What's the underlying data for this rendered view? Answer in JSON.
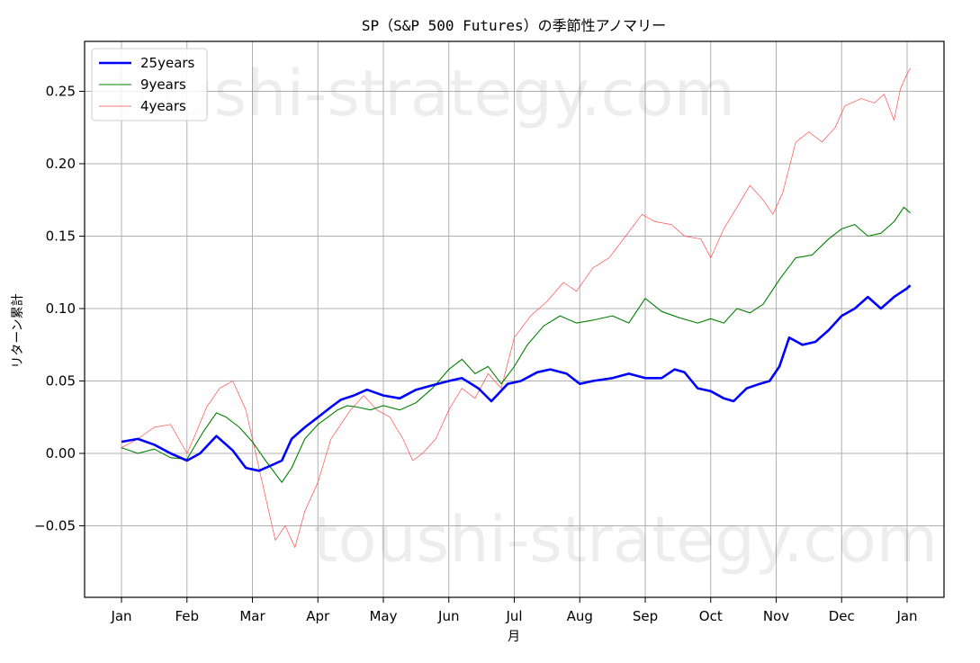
{
  "chart_data": {
    "type": "line",
    "title": "SP（S&P 500 Futures）の季節性アノマリー",
    "xlabel": "月",
    "ylabel": "リターン累計",
    "watermark": "toushi-strategy.com",
    "x_ticks": [
      "Jan",
      "Feb",
      "Mar",
      "Apr",
      "May",
      "Jun",
      "Jul",
      "Aug",
      "Sep",
      "Oct",
      "Nov",
      "Dec",
      "Jan"
    ],
    "y_ticks": [
      -0.05,
      0.0,
      0.05,
      0.1,
      0.15,
      0.2,
      0.25
    ],
    "y_tick_labels": [
      "−0.05",
      "0.00",
      "0.05",
      "0.10",
      "0.15",
      "0.20",
      "0.25"
    ],
    "xlim": [
      0,
      12.55
    ],
    "ylim": [
      -0.1,
      0.285
    ],
    "grid": true,
    "legend_position": "top-left",
    "x_unit": "month",
    "series": [
      {
        "name": "25years",
        "color": "#0000ff",
        "width": "thick",
        "points": [
          [
            0.0,
            0.008
          ],
          [
            0.25,
            0.01
          ],
          [
            0.5,
            0.006
          ],
          [
            0.75,
            0.0
          ],
          [
            1.0,
            -0.005
          ],
          [
            1.2,
            0.0
          ],
          [
            1.45,
            0.012
          ],
          [
            1.7,
            0.002
          ],
          [
            1.9,
            -0.01
          ],
          [
            2.1,
            -0.012
          ],
          [
            2.3,
            -0.008
          ],
          [
            2.45,
            -0.005
          ],
          [
            2.6,
            0.01
          ],
          [
            2.8,
            0.018
          ],
          [
            3.0,
            0.025
          ],
          [
            3.2,
            0.032
          ],
          [
            3.35,
            0.037
          ],
          [
            3.55,
            0.04
          ],
          [
            3.75,
            0.044
          ],
          [
            4.0,
            0.04
          ],
          [
            4.25,
            0.038
          ],
          [
            4.5,
            0.044
          ],
          [
            4.75,
            0.047
          ],
          [
            5.0,
            0.05
          ],
          [
            5.2,
            0.052
          ],
          [
            5.45,
            0.045
          ],
          [
            5.65,
            0.036
          ],
          [
            5.9,
            0.048
          ],
          [
            6.1,
            0.05
          ],
          [
            6.35,
            0.056
          ],
          [
            6.55,
            0.058
          ],
          [
            6.8,
            0.055
          ],
          [
            7.0,
            0.048
          ],
          [
            7.2,
            0.05
          ],
          [
            7.5,
            0.052
          ],
          [
            7.75,
            0.055
          ],
          [
            8.0,
            0.052
          ],
          [
            8.25,
            0.052
          ],
          [
            8.45,
            0.058
          ],
          [
            8.6,
            0.056
          ],
          [
            8.8,
            0.045
          ],
          [
            9.0,
            0.043
          ],
          [
            9.2,
            0.038
          ],
          [
            9.35,
            0.036
          ],
          [
            9.55,
            0.045
          ],
          [
            9.75,
            0.048
          ],
          [
            9.9,
            0.05
          ],
          [
            10.05,
            0.06
          ],
          [
            10.2,
            0.08
          ],
          [
            10.4,
            0.075
          ],
          [
            10.6,
            0.077
          ],
          [
            10.8,
            0.085
          ],
          [
            11.0,
            0.095
          ],
          [
            11.2,
            0.1
          ],
          [
            11.4,
            0.108
          ],
          [
            11.6,
            0.1
          ],
          [
            11.8,
            0.108
          ],
          [
            12.0,
            0.114
          ],
          [
            12.05,
            0.116
          ]
        ]
      },
      {
        "name": "9years",
        "color": "#008000",
        "width": "medium",
        "points": [
          [
            0.0,
            0.004
          ],
          [
            0.25,
            0.0
          ],
          [
            0.5,
            0.003
          ],
          [
            0.75,
            -0.003
          ],
          [
            1.0,
            -0.004
          ],
          [
            1.25,
            0.015
          ],
          [
            1.45,
            0.028
          ],
          [
            1.6,
            0.025
          ],
          [
            1.8,
            0.018
          ],
          [
            2.0,
            0.008
          ],
          [
            2.2,
            -0.005
          ],
          [
            2.45,
            -0.02
          ],
          [
            2.6,
            -0.01
          ],
          [
            2.8,
            0.01
          ],
          [
            3.0,
            0.02
          ],
          [
            3.15,
            0.025
          ],
          [
            3.3,
            0.03
          ],
          [
            3.45,
            0.033
          ],
          [
            3.6,
            0.032
          ],
          [
            3.8,
            0.03
          ],
          [
            4.0,
            0.033
          ],
          [
            4.25,
            0.03
          ],
          [
            4.5,
            0.035
          ],
          [
            4.75,
            0.045
          ],
          [
            5.0,
            0.058
          ],
          [
            5.2,
            0.065
          ],
          [
            5.4,
            0.055
          ],
          [
            5.6,
            0.06
          ],
          [
            5.8,
            0.048
          ],
          [
            6.0,
            0.06
          ],
          [
            6.2,
            0.075
          ],
          [
            6.45,
            0.088
          ],
          [
            6.7,
            0.095
          ],
          [
            6.95,
            0.09
          ],
          [
            7.2,
            0.092
          ],
          [
            7.5,
            0.095
          ],
          [
            7.75,
            0.09
          ],
          [
            8.0,
            0.107
          ],
          [
            8.25,
            0.098
          ],
          [
            8.5,
            0.094
          ],
          [
            8.8,
            0.09
          ],
          [
            9.0,
            0.093
          ],
          [
            9.2,
            0.09
          ],
          [
            9.4,
            0.1
          ],
          [
            9.6,
            0.097
          ],
          [
            9.8,
            0.103
          ],
          [
            10.05,
            0.12
          ],
          [
            10.3,
            0.135
          ],
          [
            10.55,
            0.137
          ],
          [
            10.8,
            0.148
          ],
          [
            11.0,
            0.155
          ],
          [
            11.2,
            0.158
          ],
          [
            11.4,
            0.15
          ],
          [
            11.6,
            0.152
          ],
          [
            11.8,
            0.16
          ],
          [
            11.95,
            0.17
          ],
          [
            12.05,
            0.166
          ]
        ]
      },
      {
        "name": "4years",
        "color": "#ff4d4d",
        "width": "thin",
        "points": [
          [
            0.0,
            0.004
          ],
          [
            0.25,
            0.01
          ],
          [
            0.5,
            0.018
          ],
          [
            0.75,
            0.02
          ],
          [
            1.0,
            0.0
          ],
          [
            1.1,
            0.01
          ],
          [
            1.3,
            0.032
          ],
          [
            1.5,
            0.045
          ],
          [
            1.7,
            0.05
          ],
          [
            1.9,
            0.03
          ],
          [
            2.0,
            0.01
          ],
          [
            2.15,
            -0.02
          ],
          [
            2.35,
            -0.06
          ],
          [
            2.5,
            -0.05
          ],
          [
            2.65,
            -0.065
          ],
          [
            2.8,
            -0.04
          ],
          [
            3.0,
            -0.02
          ],
          [
            3.2,
            0.01
          ],
          [
            3.35,
            0.02
          ],
          [
            3.5,
            0.03
          ],
          [
            3.7,
            0.04
          ],
          [
            3.9,
            0.03
          ],
          [
            4.1,
            0.025
          ],
          [
            4.3,
            0.01
          ],
          [
            4.45,
            -0.005
          ],
          [
            4.6,
            0.0
          ],
          [
            4.8,
            0.01
          ],
          [
            5.0,
            0.03
          ],
          [
            5.2,
            0.045
          ],
          [
            5.4,
            0.038
          ],
          [
            5.6,
            0.055
          ],
          [
            5.8,
            0.045
          ],
          [
            6.0,
            0.08
          ],
          [
            6.25,
            0.095
          ],
          [
            6.5,
            0.105
          ],
          [
            6.75,
            0.118
          ],
          [
            6.95,
            0.112
          ],
          [
            7.2,
            0.128
          ],
          [
            7.45,
            0.135
          ],
          [
            7.7,
            0.15
          ],
          [
            7.95,
            0.165
          ],
          [
            8.15,
            0.16
          ],
          [
            8.4,
            0.158
          ],
          [
            8.6,
            0.15
          ],
          [
            8.85,
            0.148
          ],
          [
            9.0,
            0.135
          ],
          [
            9.2,
            0.155
          ],
          [
            9.4,
            0.17
          ],
          [
            9.6,
            0.185
          ],
          [
            9.8,
            0.175
          ],
          [
            9.95,
            0.165
          ],
          [
            10.1,
            0.18
          ],
          [
            10.3,
            0.215
          ],
          [
            10.5,
            0.222
          ],
          [
            10.7,
            0.215
          ],
          [
            10.9,
            0.225
          ],
          [
            11.05,
            0.24
          ],
          [
            11.3,
            0.245
          ],
          [
            11.5,
            0.242
          ],
          [
            11.65,
            0.248
          ],
          [
            11.8,
            0.23
          ],
          [
            11.9,
            0.252
          ],
          [
            12.0,
            0.262
          ],
          [
            12.05,
            0.266
          ]
        ]
      }
    ]
  }
}
